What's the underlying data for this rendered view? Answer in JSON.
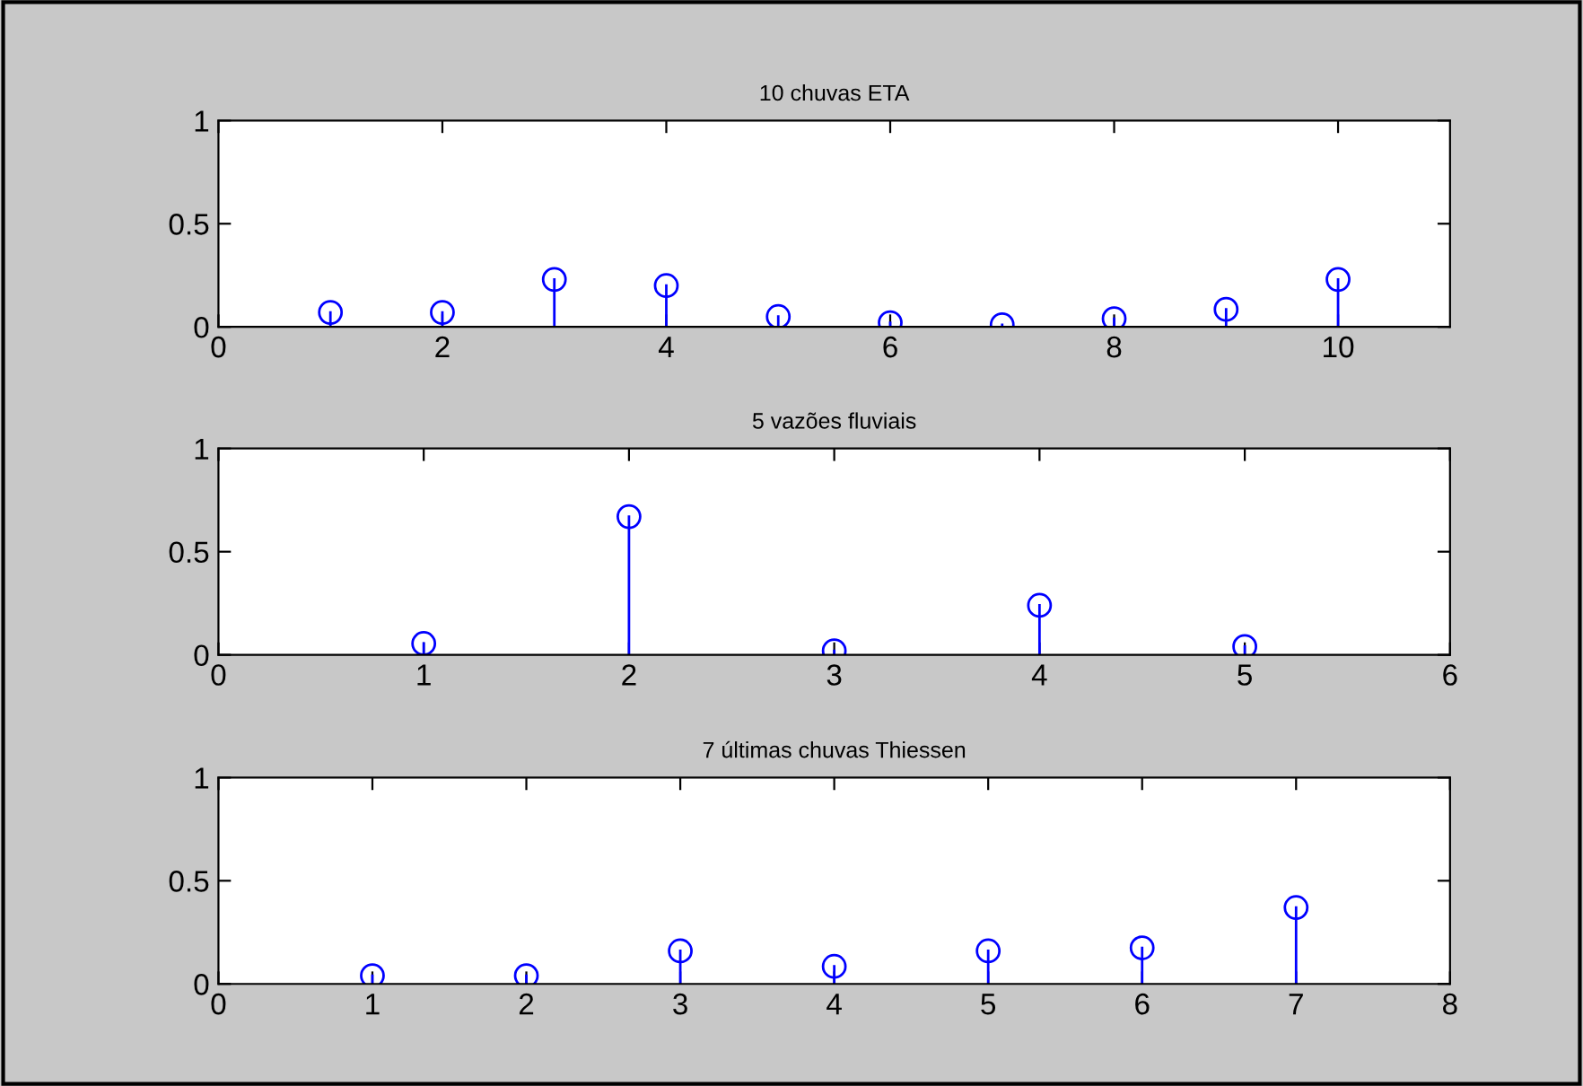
{
  "chart_data": [
    {
      "type": "lollipop",
      "title": "10 chuvas ETA",
      "x": [
        1,
        2,
        3,
        4,
        5,
        6,
        7,
        8,
        9,
        10
      ],
      "values": [
        0.07,
        0.07,
        0.23,
        0.2,
        0.05,
        0.02,
        0.01,
        0.04,
        0.085,
        0.23
      ],
      "color": "#0000ff",
      "marker": "circle",
      "xlim": [
        0,
        11
      ],
      "xticks": [
        0,
        2,
        4,
        6,
        8,
        10
      ],
      "ylim": [
        0,
        1
      ],
      "yticks": [
        0,
        0.5,
        1
      ],
      "grid": false
    },
    {
      "type": "lollipop",
      "title": "5 vazões fluviais",
      "x": [
        1,
        2,
        3,
        4,
        5
      ],
      "values": [
        0.055,
        0.67,
        0.02,
        0.24,
        0.04
      ],
      "color": "#0000ff",
      "marker": "circle",
      "xlim": [
        0,
        6
      ],
      "xticks": [
        0,
        1,
        2,
        3,
        4,
        5,
        6
      ],
      "ylim": [
        0,
        1
      ],
      "yticks": [
        0,
        0.5,
        1
      ],
      "grid": false
    },
    {
      "type": "lollipop",
      "title": "7 últimas chuvas Thiessen",
      "x": [
        1,
        2,
        3,
        4,
        5,
        6,
        7
      ],
      "values": [
        0.04,
        0.04,
        0.16,
        0.085,
        0.16,
        0.175,
        0.37
      ],
      "color": "#0000ff",
      "marker": "circle",
      "xlim": [
        0,
        8
      ],
      "xticks": [
        0,
        1,
        2,
        3,
        4,
        5,
        6,
        7,
        8
      ],
      "ylim": [
        0,
        1
      ],
      "yticks": [
        0,
        0.5,
        1
      ],
      "grid": false
    }
  ]
}
